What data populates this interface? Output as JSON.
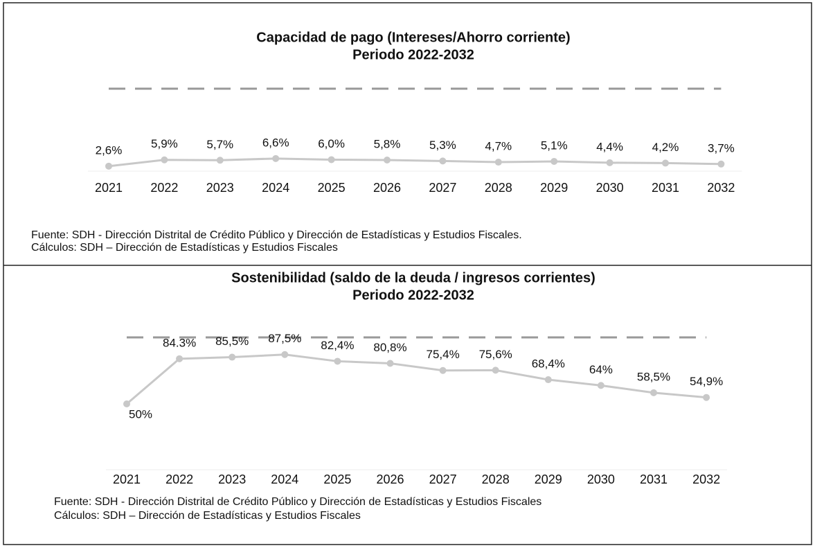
{
  "chart_data": [
    {
      "type": "line",
      "title": "Capacidad de pago (Intereses/Ahorro corriente)",
      "subtitle": "Periodo 2022-2032",
      "categories": [
        "2021",
        "2022",
        "2023",
        "2024",
        "2025",
        "2026",
        "2027",
        "2028",
        "2029",
        "2030",
        "2031",
        "2032"
      ],
      "values": [
        2.6,
        5.9,
        5.7,
        6.6,
        6.0,
        5.8,
        5.3,
        4.7,
        5.1,
        4.4,
        4.2,
        3.7
      ],
      "value_labels": [
        "2,6%",
        "5,9%",
        "5,7%",
        "6,6%",
        "6,0%",
        "5,8%",
        "5,3%",
        "4,7%",
        "5,1%",
        "4,4%",
        "4,2%",
        "3,7%"
      ],
      "color": "#c8c8c8",
      "ylim": [
        0,
        45
      ],
      "notes": [
        "Fuente: SDH - Dirección Distrital de Crédito Público y Dirección de Estadísticas y Estudios Fiscales.",
        "Cálculos: SDH – Dirección de Estadísticas y Estudios Fiscales"
      ]
    },
    {
      "type": "line",
      "title": "Sostenibilidad (saldo de la deuda / ingresos corrientes)",
      "subtitle": "Periodo 2022-2032",
      "categories": [
        "2021",
        "2022",
        "2023",
        "2024",
        "2025",
        "2026",
        "2027",
        "2028",
        "2029",
        "2030",
        "2031",
        "2032"
      ],
      "values": [
        50,
        84.3,
        85.5,
        87.5,
        82.4,
        80.8,
        75.4,
        75.6,
        68.4,
        64,
        58.5,
        54.9
      ],
      "value_labels": [
        "50%",
        "84.3%",
        "85,5%",
        "87,5%",
        "82,4%",
        "80,8%",
        "75,4%",
        "75,6%",
        "68,4%",
        "64%",
        "58,5%",
        "54,9%"
      ],
      "color": "#c8c8c8",
      "ylim": [
        0,
        100
      ],
      "notes": [
        "Fuente: SDH - Dirección Distrital de Crédito Público y Dirección de Estadísticas y Estudios Fiscales",
        "Cálculos: SDH – Dirección de Estadísticas y Estudios Fiscales"
      ]
    }
  ]
}
